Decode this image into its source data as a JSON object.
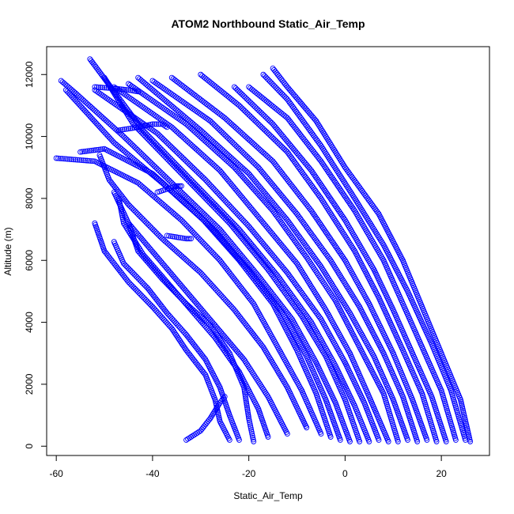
{
  "chart_data": {
    "type": "scatter",
    "title": "ATOM2 Northbound Static_Air_Temp",
    "xlabel": "Static_Air_Temp",
    "ylabel": "Altitude (m)",
    "xlim": [
      -62,
      30
    ],
    "ylim": [
      -300,
      12900
    ],
    "xticks": [
      -60,
      -40,
      -20,
      0,
      20
    ],
    "yticks": [
      0,
      2000,
      4000,
      6000,
      8000,
      10000,
      12000
    ],
    "marker": "open-circle",
    "color": "#0000ff",
    "grid": false,
    "series": [
      {
        "points": [
          [
            26,
            150
          ],
          [
            24,
            1500
          ],
          [
            20,
            3000
          ],
          [
            16,
            4500
          ],
          [
            12,
            6000
          ],
          [
            7,
            7500
          ],
          [
            0,
            9000
          ],
          [
            -6,
            10500
          ],
          [
            -12,
            11600
          ],
          [
            -15,
            12200
          ]
        ]
      },
      {
        "points": [
          [
            25,
            200
          ],
          [
            22,
            1800
          ],
          [
            18,
            3300
          ],
          [
            13,
            5000
          ],
          [
            8,
            6500
          ],
          [
            2,
            8000
          ],
          [
            -5,
            9700
          ],
          [
            -12,
            11200
          ],
          [
            -17,
            12000
          ]
        ]
      },
      {
        "points": [
          [
            23,
            200
          ],
          [
            20,
            1800
          ],
          [
            16,
            3200
          ],
          [
            12,
            4600
          ],
          [
            8,
            6000
          ],
          [
            2,
            7600
          ],
          [
            -5,
            9200
          ],
          [
            -12,
            10600
          ],
          [
            -20,
            11600
          ]
        ]
      },
      {
        "points": [
          [
            21,
            150
          ],
          [
            18,
            1600
          ],
          [
            14,
            3000
          ],
          [
            10,
            4400
          ],
          [
            6,
            5700
          ],
          [
            0,
            7300
          ],
          [
            -7,
            8900
          ],
          [
            -15,
            10400
          ],
          [
            -23,
            11600
          ]
        ]
      },
      {
        "points": [
          [
            19,
            150
          ],
          [
            16,
            1700
          ],
          [
            12,
            3100
          ],
          [
            7,
            4800
          ],
          [
            2,
            6300
          ],
          [
            -5,
            8000
          ],
          [
            -12,
            9500
          ],
          [
            -22,
            11000
          ],
          [
            -30,
            12000
          ]
        ]
      },
      {
        "points": [
          [
            17,
            200
          ],
          [
            14,
            1500
          ],
          [
            10,
            3000
          ],
          [
            5,
            4600
          ],
          [
            0,
            6000
          ],
          [
            -7,
            7600
          ],
          [
            -15,
            9200
          ],
          [
            -25,
            10600
          ],
          [
            -36,
            11900
          ]
        ]
      },
      {
        "points": [
          [
            15,
            150
          ],
          [
            12,
            1600
          ],
          [
            8,
            3000
          ],
          [
            3,
            4500
          ],
          [
            -3,
            6000
          ],
          [
            -10,
            7500
          ],
          [
            -18,
            9000
          ],
          [
            -28,
            10500
          ],
          [
            -40,
            11800
          ]
        ]
      },
      {
        "points": [
          [
            13,
            200
          ],
          [
            10,
            1500
          ],
          [
            6,
            2900
          ],
          [
            1,
            4300
          ],
          [
            -5,
            5800
          ],
          [
            -12,
            7300
          ],
          [
            -20,
            8800
          ],
          [
            -30,
            10200
          ],
          [
            -43,
            11900
          ]
        ]
      },
      {
        "points": [
          [
            11,
            150
          ],
          [
            8,
            1700
          ],
          [
            3,
            3200
          ],
          [
            -2,
            4700
          ],
          [
            -8,
            6100
          ],
          [
            -15,
            7600
          ],
          [
            -23,
            9000
          ],
          [
            -33,
            10400
          ],
          [
            -45,
            11700
          ]
        ]
      },
      {
        "points": [
          [
            9,
            150
          ],
          [
            5,
            1600
          ],
          [
            1,
            3000
          ],
          [
            -4,
            4400
          ],
          [
            -10,
            5900
          ],
          [
            -18,
            7400
          ],
          [
            -26,
            8900
          ],
          [
            -36,
            10300
          ],
          [
            -48,
            11600
          ]
        ]
      },
      {
        "points": [
          [
            7,
            200
          ],
          [
            4,
            1400
          ],
          [
            0,
            2700
          ],
          [
            -5,
            4100
          ],
          [
            -12,
            5600
          ],
          [
            -20,
            7100
          ],
          [
            -29,
            8600
          ],
          [
            -39,
            10100
          ],
          [
            -52,
            11500
          ]
        ]
      },
      {
        "points": [
          [
            5,
            150
          ],
          [
            2,
            1300
          ],
          [
            -2,
            2600
          ],
          [
            -7,
            4000
          ],
          [
            -14,
            5500
          ],
          [
            -22,
            7000
          ],
          [
            -32,
            8600
          ],
          [
            -42,
            10200
          ],
          [
            -53,
            12500
          ]
        ]
      },
      {
        "points": [
          [
            3,
            150
          ],
          [
            0,
            1500
          ],
          [
            -4,
            2900
          ],
          [
            -9,
            4200
          ],
          [
            -16,
            5700
          ],
          [
            -24,
            7200
          ],
          [
            -34,
            8800
          ],
          [
            -44,
            10400
          ],
          [
            -50,
            11900
          ]
        ]
      },
      {
        "points": [
          [
            1,
            150
          ],
          [
            -2,
            1400
          ],
          [
            -6,
            2700
          ],
          [
            -11,
            4100
          ],
          [
            -18,
            5500
          ],
          [
            -26,
            7000
          ],
          [
            -36,
            8500
          ],
          [
            -46,
            10000
          ],
          [
            -56,
            11400
          ],
          [
            -59,
            11800
          ]
        ]
      },
      {
        "points": [
          [
            -1,
            200
          ],
          [
            -4,
            1500
          ],
          [
            -8,
            2900
          ],
          [
            -13,
            4300
          ],
          [
            -20,
            5700
          ],
          [
            -28,
            7100
          ],
          [
            -38,
            8500
          ],
          [
            -48,
            9800
          ],
          [
            -58,
            11500
          ]
        ]
      },
      {
        "points": [
          [
            -3,
            300
          ],
          [
            -6,
            1700
          ],
          [
            -10,
            3100
          ],
          [
            -15,
            4600
          ],
          [
            -22,
            6000
          ],
          [
            -30,
            7400
          ],
          [
            -40,
            8800
          ],
          [
            -50,
            9600
          ],
          [
            -55,
            9500
          ]
        ]
      },
      {
        "points": [
          [
            -5,
            400
          ],
          [
            -9,
            1800
          ],
          [
            -14,
            3200
          ],
          [
            -19,
            4600
          ],
          [
            -26,
            6000
          ],
          [
            -34,
            7300
          ],
          [
            -43,
            8500
          ],
          [
            -52,
            9200
          ],
          [
            -60,
            9300
          ]
        ]
      },
      {
        "points": [
          [
            -8,
            600
          ],
          [
            -12,
            1900
          ],
          [
            -17,
            3200
          ],
          [
            -23,
            4400
          ],
          [
            -30,
            5600
          ],
          [
            -38,
            6700
          ],
          [
            -45,
            7800
          ],
          [
            -49,
            8600
          ],
          [
            -51,
            9400
          ]
        ]
      },
      {
        "points": [
          [
            -12,
            400
          ],
          [
            -16,
            1600
          ],
          [
            -21,
            2800
          ],
          [
            -27,
            3900
          ],
          [
            -33,
            5000
          ],
          [
            -39,
            6100
          ],
          [
            -45,
            7200
          ],
          [
            -48,
            8200
          ]
        ]
      },
      {
        "points": [
          [
            -16,
            300
          ],
          [
            -18,
            1200
          ],
          [
            -22,
            2400
          ],
          [
            -27,
            3500
          ],
          [
            -32,
            4400
          ],
          [
            -37,
            5300
          ],
          [
            -42,
            6200
          ],
          [
            -46,
            7200
          ],
          [
            -47,
            8000
          ]
        ]
      },
      {
        "points": [
          [
            -19,
            150
          ],
          [
            -20,
            900
          ],
          [
            -21,
            1900
          ],
          [
            -24,
            3000
          ],
          [
            -28,
            3900
          ],
          [
            -33,
            4600
          ],
          [
            -38,
            5400
          ],
          [
            -43,
            6300
          ],
          [
            -45,
            7200
          ]
        ]
      },
      {
        "points": [
          [
            -22,
            200
          ],
          [
            -24,
            1000
          ],
          [
            -26,
            1900
          ],
          [
            -29,
            2800
          ],
          [
            -33,
            3600
          ],
          [
            -37,
            4300
          ],
          [
            -41,
            5100
          ],
          [
            -46,
            5900
          ],
          [
            -48,
            6600
          ]
        ]
      },
      {
        "points": [
          [
            -24,
            200
          ],
          [
            -26,
            800
          ],
          [
            -27,
            1500
          ],
          [
            -29,
            2300
          ],
          [
            -33,
            3100
          ],
          [
            -36,
            3800
          ],
          [
            -40,
            4500
          ],
          [
            -45,
            5300
          ],
          [
            -50,
            6300
          ],
          [
            -52,
            7200
          ]
        ]
      },
      {
        "points": [
          [
            -33,
            200
          ],
          [
            -30,
            500
          ],
          [
            -28,
            900
          ],
          [
            -26,
            1400
          ],
          [
            -25,
            1600
          ]
        ]
      },
      {
        "points": [
          [
            -37,
            6800
          ],
          [
            -35,
            6750
          ],
          [
            -33,
            6700
          ],
          [
            -32,
            6700
          ]
        ]
      },
      {
        "points": [
          [
            -39,
            8200
          ],
          [
            -37,
            8300
          ],
          [
            -35,
            8400
          ],
          [
            -34,
            8400
          ]
        ]
      },
      {
        "points": [
          [
            -47,
            10200
          ],
          [
            -43,
            10300
          ],
          [
            -40,
            10400
          ],
          [
            -38,
            10400
          ],
          [
            -37,
            10300
          ]
        ]
      },
      {
        "points": [
          [
            -52,
            11600
          ],
          [
            -48,
            11550
          ],
          [
            -45,
            11500
          ],
          [
            -43,
            11450
          ]
        ]
      }
    ]
  }
}
